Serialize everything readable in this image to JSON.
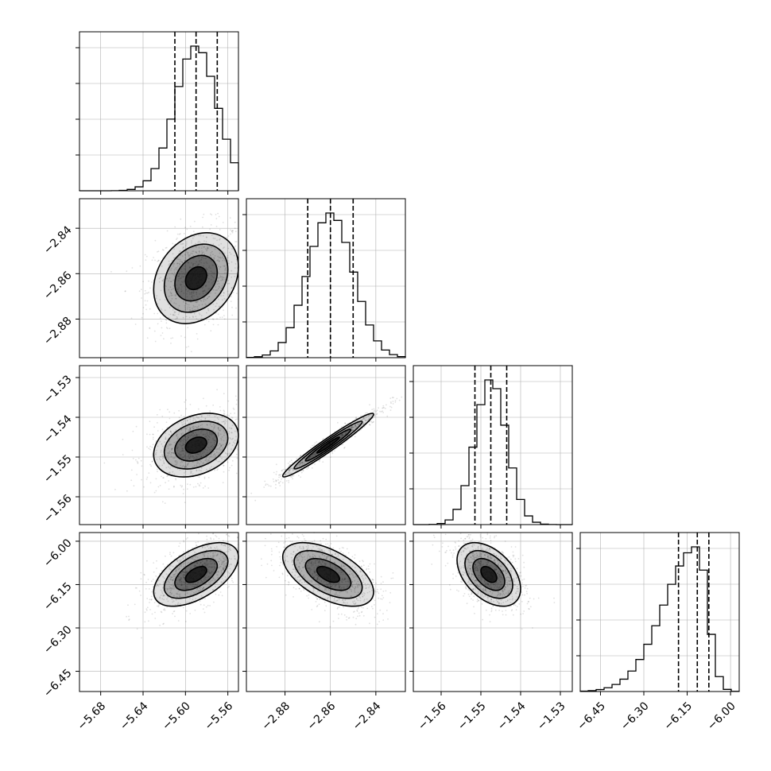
{
  "chart_data": {
    "type": "scatter",
    "kind": "corner plot (posterior samples)",
    "n_params": 4,
    "grid": true,
    "quantiles_shown": [
      0.16,
      0.5,
      0.84
    ],
    "params": [
      {
        "range": [
          -5.7,
          -5.55
        ],
        "ticks": [
          -5.68,
          -5.64,
          -5.6,
          -5.56
        ],
        "tick_labels": [
          "−5.68",
          "−5.64",
          "−5.60",
          "−5.56"
        ],
        "median": -5.59,
        "q16": -5.61,
        "q84": -5.57,
        "sigma": 0.02
      },
      {
        "range": [
          -2.897,
          -2.827
        ],
        "ticks": [
          -2.88,
          -2.86,
          -2.84
        ],
        "tick_labels": [
          "−2.88",
          "−2.86",
          "−2.84"
        ],
        "median": -2.86,
        "q16": -2.87,
        "q84": -2.85,
        "sigma": 0.01
      },
      {
        "range": [
          -1.567,
          -1.527
        ],
        "ticks": [
          -1.56,
          -1.55,
          -1.54,
          -1.53
        ],
        "tick_labels": [
          "−1.56",
          "−1.55",
          "−1.54",
          "−1.53"
        ],
        "median": -1.5475,
        "q16": -1.5515,
        "q84": -1.5435,
        "sigma": 0.004
      },
      {
        "range": [
          -6.52,
          -5.97
        ],
        "ticks": [
          -6.45,
          -6.3,
          -6.15,
          -6.0
        ],
        "tick_labels": [
          "−6.45",
          "−6.30",
          "−6.15",
          "−6.00"
        ],
        "median": -6.115,
        "q16": -6.18,
        "q84": -6.075,
        "sigma": 0.055
      }
    ],
    "correlations": [
      {
        "row": 1,
        "col": 0,
        "rho": 0.25,
        "center": [
          -5.59,
          -2.862
        ]
      },
      {
        "row": 2,
        "col": 0,
        "rho": 0.3,
        "center": [
          -5.59,
          -1.547
        ]
      },
      {
        "row": 2,
        "col": 1,
        "rho": 0.97,
        "center": [
          -2.861,
          -1.547
        ]
      },
      {
        "row": 3,
        "col": 0,
        "rho": 0.55,
        "center": [
          -5.59,
          -6.115
        ]
      },
      {
        "row": 3,
        "col": 1,
        "rho": -0.55,
        "center": [
          -2.861,
          -6.115
        ]
      },
      {
        "row": 3,
        "col": 2,
        "rho": -0.45,
        "center": [
          -1.548,
          -6.115
        ]
      }
    ],
    "histograms": [
      {
        "param": 0,
        "density_peak": 1.0
      },
      {
        "param": 1,
        "density_peak": 1.0
      },
      {
        "param": 2,
        "density_peak": 1.0
      },
      {
        "param": 3,
        "density_peak": 1.0
      }
    ],
    "colors": {
      "line": "#000000",
      "points": "#000000",
      "grid": "#b0b0b0"
    }
  }
}
